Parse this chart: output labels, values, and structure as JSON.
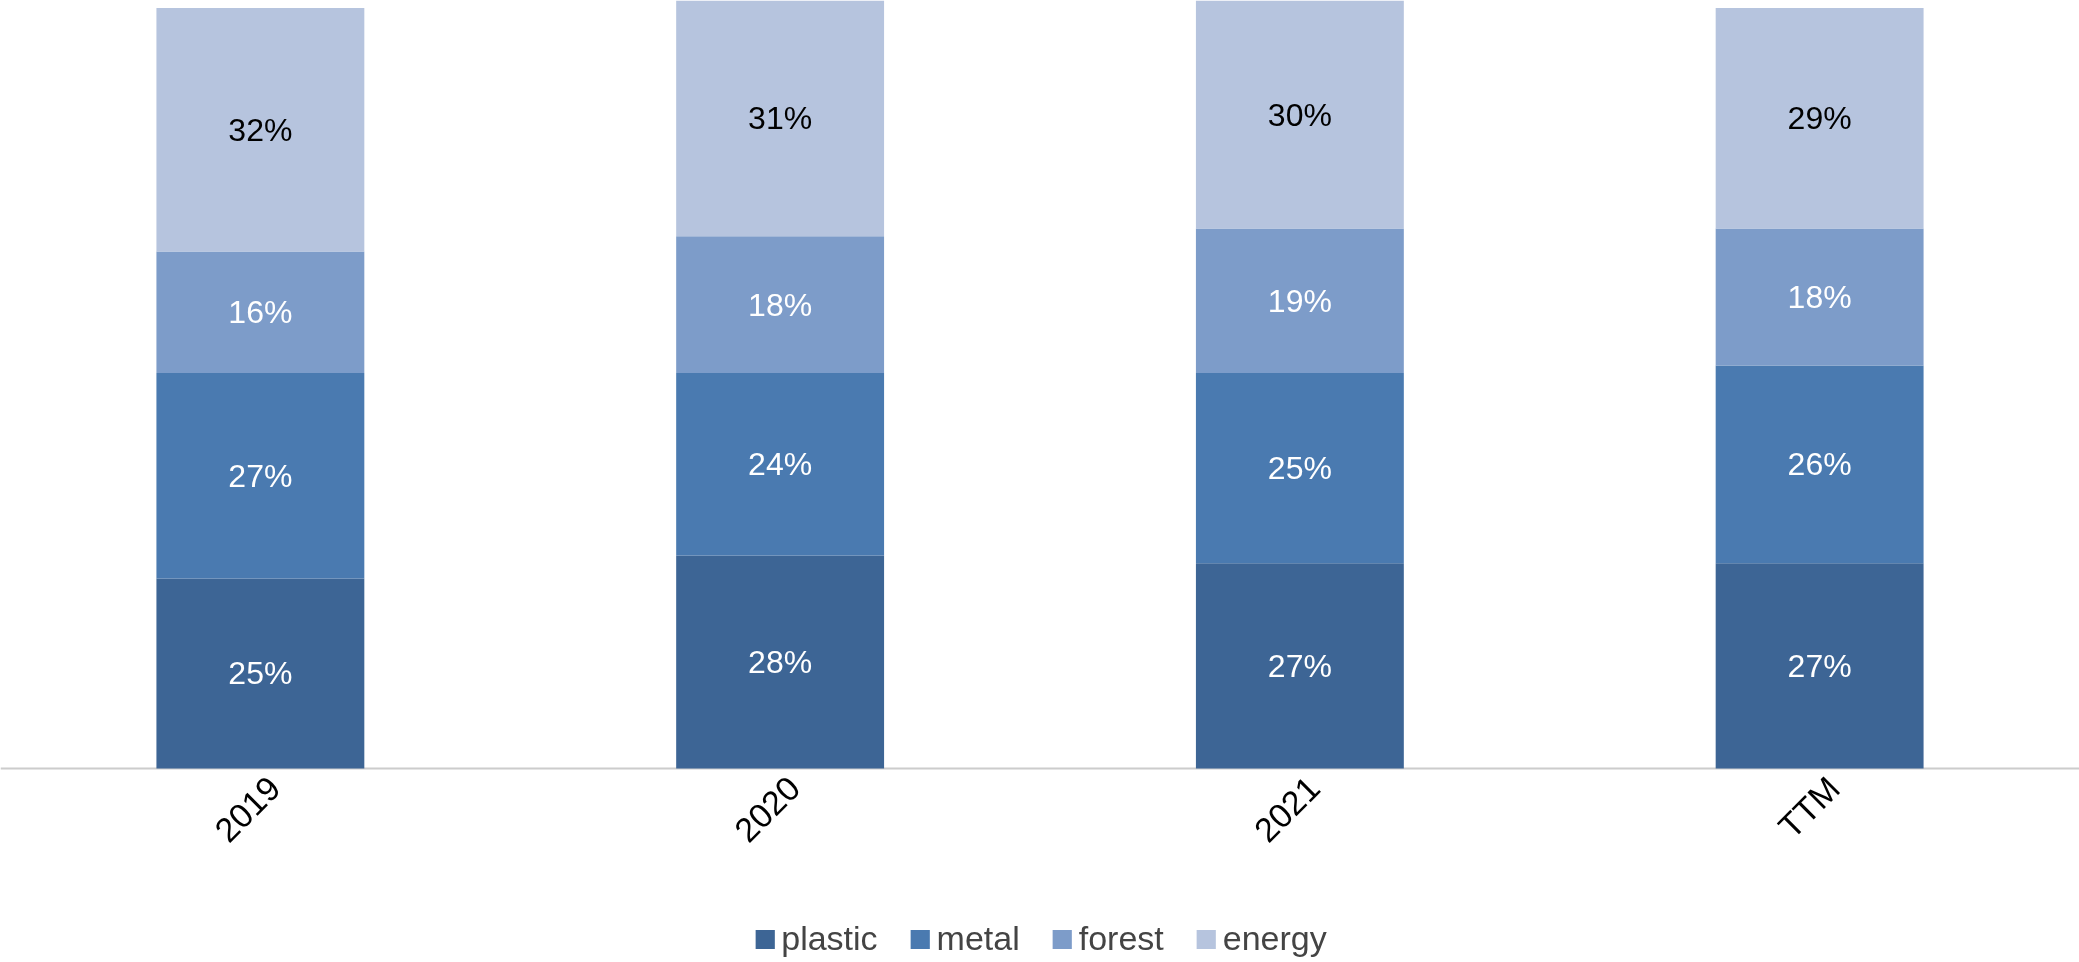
{
  "chart_data": {
    "type": "bar",
    "stacked": true,
    "legend": "bottom",
    "categories": [
      "2019",
      "2020",
      "2021",
      "TTM"
    ],
    "series": [
      {
        "name": "plastic",
        "color": "#3d6595",
        "values": [
          25,
          28,
          27,
          27
        ],
        "value_labels": [
          "25%",
          "28%",
          "27%",
          "27%"
        ]
      },
      {
        "name": "metal",
        "color": "#4a7ab0",
        "values": [
          27,
          24,
          25,
          26
        ],
        "value_labels": [
          "27%",
          "24%",
          "25%",
          "26%"
        ]
      },
      {
        "name": "forest",
        "color": "#7d9cc9",
        "values": [
          16,
          18,
          19,
          18
        ],
        "value_labels": [
          "16%",
          "18%",
          "19%",
          "18%"
        ]
      },
      {
        "name": "energy",
        "color": "#b6c4de",
        "values": [
          32,
          31,
          30,
          29
        ],
        "value_labels": [
          "32%",
          "31%",
          "30%",
          "29%"
        ]
      }
    ]
  }
}
